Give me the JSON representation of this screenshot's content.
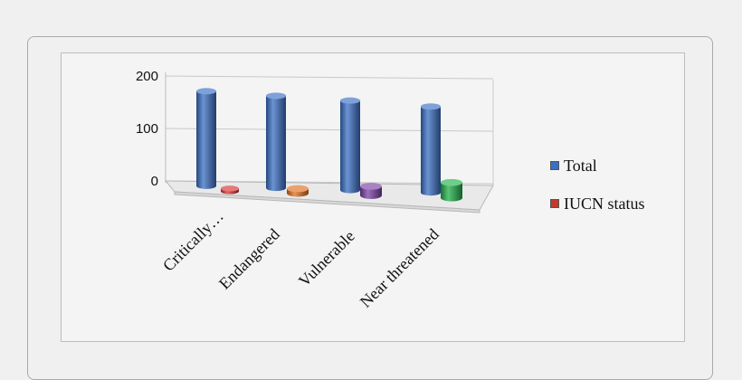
{
  "chart_data": {
    "type": "bar",
    "title": "",
    "xlabel": "",
    "ylabel": "",
    "ylim": [
      0,
      200
    ],
    "yticks": [
      0,
      100,
      200
    ],
    "categories": [
      "Critically…",
      "Endangered",
      "Vulnerable",
      "Near threatened"
    ],
    "series": [
      {
        "name": "Total",
        "values": [
          185,
          180,
          175,
          168
        ],
        "color": "#3a6fc4"
      },
      {
        "name": "IUCN status",
        "values": [
          2,
          6,
          12,
          20
        ],
        "colors": [
          "#d9302f",
          "#e06f1e",
          "#7b3fa6",
          "#22b04a"
        ],
        "color": "#c0392b"
      }
    ],
    "legend": "right",
    "style": "3d-cylinder"
  }
}
